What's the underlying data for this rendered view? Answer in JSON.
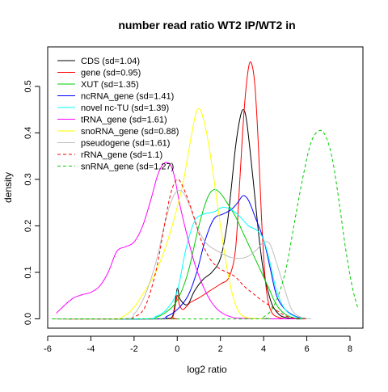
{
  "chart_data": {
    "type": "line",
    "title": "number read ratio WT2 IP/WT2 in",
    "xlabel": "log2 ratio",
    "ylabel": "density",
    "xlim": [
      -6.0,
      8.6
    ],
    "ylim": [
      -0.02,
      0.585
    ],
    "x_ticks": [
      -6,
      -4,
      -2,
      0,
      2,
      4,
      6,
      8
    ],
    "y_ticks": [
      0.0,
      0.1,
      0.2,
      0.3,
      0.4,
      0.5
    ],
    "legend_position": "top-left",
    "series": [
      {
        "name": "CDS (sd=1.04)",
        "color": "#000000",
        "dash": "solid",
        "points": [
          [
            -5.8,
            0
          ],
          [
            -1.0,
            0
          ],
          [
            -0.5,
            0.001
          ],
          [
            -0.2,
            0.008
          ],
          [
            0,
            0.065
          ],
          [
            0.1,
            0.045
          ],
          [
            0.25,
            0.035
          ],
          [
            0.4,
            0.03
          ],
          [
            0.55,
            0.035
          ],
          [
            0.8,
            0.06
          ],
          [
            1.2,
            0.085
          ],
          [
            1.6,
            0.1
          ],
          [
            2.0,
            0.13
          ],
          [
            2.3,
            0.2
          ],
          [
            2.5,
            0.28
          ],
          [
            2.7,
            0.37
          ],
          [
            2.9,
            0.43
          ],
          [
            3.05,
            0.45
          ],
          [
            3.2,
            0.43
          ],
          [
            3.4,
            0.35
          ],
          [
            3.6,
            0.26
          ],
          [
            3.8,
            0.17
          ],
          [
            4.0,
            0.1
          ],
          [
            4.2,
            0.06
          ],
          [
            4.4,
            0.03
          ],
          [
            4.7,
            0.01
          ],
          [
            5.0,
            0.003
          ],
          [
            5.5,
            0
          ],
          [
            6.0,
            0
          ]
        ]
      },
      {
        "name": "gene (sd=0.95)",
        "color": "#ff0000",
        "dash": "solid",
        "points": [
          [
            -5.8,
            0
          ],
          [
            -0.5,
            0
          ],
          [
            -0.2,
            0.005
          ],
          [
            0,
            0.05
          ],
          [
            0.1,
            0.03
          ],
          [
            0.25,
            0.02
          ],
          [
            0.4,
            0.025
          ],
          [
            0.6,
            0.035
          ],
          [
            1.0,
            0.045
          ],
          [
            1.5,
            0.06
          ],
          [
            2.0,
            0.075
          ],
          [
            2.4,
            0.09
          ],
          [
            2.7,
            0.15
          ],
          [
            2.9,
            0.3
          ],
          [
            3.1,
            0.45
          ],
          [
            3.3,
            0.54
          ],
          [
            3.45,
            0.548
          ],
          [
            3.6,
            0.5
          ],
          [
            3.75,
            0.38
          ],
          [
            3.9,
            0.22
          ],
          [
            4.05,
            0.1
          ],
          [
            4.2,
            0.04
          ],
          [
            4.4,
            0.012
          ],
          [
            4.7,
            0.003
          ],
          [
            5.0,
            0
          ]
        ]
      },
      {
        "name": "XUT (sd=1.35)",
        "color": "#00cc00",
        "dash": "solid",
        "points": [
          [
            -5.8,
            0
          ],
          [
            -1.5,
            0
          ],
          [
            -1.0,
            0.003
          ],
          [
            -0.5,
            0.015
          ],
          [
            0,
            0.04
          ],
          [
            0.5,
            0.1
          ],
          [
            1.0,
            0.2
          ],
          [
            1.4,
            0.26
          ],
          [
            1.7,
            0.278
          ],
          [
            2.0,
            0.27
          ],
          [
            2.3,
            0.25
          ],
          [
            2.7,
            0.22
          ],
          [
            3.0,
            0.19
          ],
          [
            3.4,
            0.15
          ],
          [
            3.8,
            0.11
          ],
          [
            4.2,
            0.07
          ],
          [
            4.6,
            0.03
          ],
          [
            5.0,
            0.01
          ],
          [
            5.5,
            0.001
          ],
          [
            6.0,
            0
          ]
        ]
      },
      {
        "name": "ncRNA_gene (sd=1.41)",
        "color": "#0000ff",
        "dash": "solid",
        "points": [
          [
            -5.8,
            0
          ],
          [
            -1.0,
            0
          ],
          [
            -0.5,
            0.005
          ],
          [
            0,
            0.02
          ],
          [
            0.5,
            0.05
          ],
          [
            0.9,
            0.1
          ],
          [
            1.3,
            0.17
          ],
          [
            1.7,
            0.215
          ],
          [
            2.1,
            0.225
          ],
          [
            2.5,
            0.235
          ],
          [
            2.8,
            0.25
          ],
          [
            3.05,
            0.265
          ],
          [
            3.3,
            0.255
          ],
          [
            3.6,
            0.22
          ],
          [
            4.0,
            0.17
          ],
          [
            4.3,
            0.11
          ],
          [
            4.6,
            0.05
          ],
          [
            5.0,
            0.02
          ],
          [
            5.5,
            0.005
          ],
          [
            6.0,
            0
          ]
        ]
      },
      {
        "name": "novel nc-TU (sd=1.39)",
        "color": "#00ffff",
        "dash": "solid",
        "points": [
          [
            -5.8,
            0
          ],
          [
            -1.5,
            0
          ],
          [
            -1.0,
            0.005
          ],
          [
            -0.5,
            0.02
          ],
          [
            0,
            0.06
          ],
          [
            0.4,
            0.15
          ],
          [
            0.8,
            0.21
          ],
          [
            1.2,
            0.225
          ],
          [
            1.7,
            0.23
          ],
          [
            2.1,
            0.24
          ],
          [
            2.5,
            0.235
          ],
          [
            2.9,
            0.22
          ],
          [
            3.3,
            0.2
          ],
          [
            3.7,
            0.19
          ],
          [
            4.0,
            0.17
          ],
          [
            4.3,
            0.12
          ],
          [
            4.6,
            0.06
          ],
          [
            5.0,
            0.02
          ],
          [
            5.5,
            0.004
          ],
          [
            6.0,
            0
          ]
        ]
      },
      {
        "name": "tRNA_gene (sd=1.61)",
        "color": "#ff00ff",
        "dash": "solid",
        "points": [
          [
            -5.6,
            0.012
          ],
          [
            -5.2,
            0.03
          ],
          [
            -4.8,
            0.045
          ],
          [
            -4.4,
            0.052
          ],
          [
            -4.0,
            0.057
          ],
          [
            -3.6,
            0.07
          ],
          [
            -3.2,
            0.1
          ],
          [
            -2.8,
            0.145
          ],
          [
            -2.4,
            0.155
          ],
          [
            -2.0,
            0.165
          ],
          [
            -1.6,
            0.2
          ],
          [
            -1.2,
            0.26
          ],
          [
            -0.9,
            0.31
          ],
          [
            -0.6,
            0.335
          ],
          [
            -0.3,
            0.33
          ],
          [
            -0.1,
            0.3
          ],
          [
            0.1,
            0.25
          ],
          [
            0.4,
            0.19
          ],
          [
            0.8,
            0.12
          ],
          [
            1.2,
            0.07
          ],
          [
            1.6,
            0.035
          ],
          [
            2.0,
            0.015
          ],
          [
            2.5,
            0.004
          ],
          [
            3.0,
            0.001
          ],
          [
            4.0,
            0
          ],
          [
            5.5,
            0
          ]
        ]
      },
      {
        "name": "snoRNA_gene (sd=0.88)",
        "color": "#ffff00",
        "dash": "solid",
        "points": [
          [
            -5.8,
            0
          ],
          [
            -3.0,
            0
          ],
          [
            -2.5,
            0.005
          ],
          [
            -2.0,
            0.025
          ],
          [
            -1.5,
            0.06
          ],
          [
            -1.0,
            0.1
          ],
          [
            -0.5,
            0.16
          ],
          [
            0,
            0.24
          ],
          [
            0.3,
            0.3
          ],
          [
            0.6,
            0.38
          ],
          [
            0.85,
            0.44
          ],
          [
            1.0,
            0.452
          ],
          [
            1.15,
            0.44
          ],
          [
            1.4,
            0.39
          ],
          [
            1.7,
            0.3
          ],
          [
            2.0,
            0.2
          ],
          [
            2.3,
            0.11
          ],
          [
            2.6,
            0.045
          ],
          [
            2.9,
            0.012
          ],
          [
            3.3,
            0.002
          ],
          [
            4.0,
            0
          ]
        ]
      },
      {
        "name": "pseudogene (sd=1.61)",
        "color": "#bebebe",
        "dash": "solid",
        "points": [
          [
            -5.8,
            0
          ],
          [
            -2.5,
            0
          ],
          [
            -2.0,
            0.01
          ],
          [
            -1.5,
            0.05
          ],
          [
            -1.0,
            0.12
          ],
          [
            -0.6,
            0.2
          ],
          [
            -0.3,
            0.25
          ],
          [
            0,
            0.275
          ],
          [
            0.3,
            0.27
          ],
          [
            0.6,
            0.24
          ],
          [
            0.9,
            0.2
          ],
          [
            1.3,
            0.165
          ],
          [
            1.7,
            0.15
          ],
          [
            2.1,
            0.14
          ],
          [
            2.5,
            0.132
          ],
          [
            2.9,
            0.13
          ],
          [
            3.3,
            0.135
          ],
          [
            3.7,
            0.15
          ],
          [
            4.0,
            0.165
          ],
          [
            4.3,
            0.16
          ],
          [
            4.6,
            0.12
          ],
          [
            5.0,
            0.06
          ],
          [
            5.3,
            0.02
          ],
          [
            5.7,
            0.004
          ],
          [
            6.2,
            0
          ]
        ]
      },
      {
        "name": "rRNA_gene (sd=1.1)",
        "color": "#ff0000",
        "dash": "dashed",
        "points": [
          [
            -5.8,
            0
          ],
          [
            -2.5,
            0
          ],
          [
            -2.0,
            0.004
          ],
          [
            -1.5,
            0.025
          ],
          [
            -1.0,
            0.1
          ],
          [
            -0.6,
            0.2
          ],
          [
            -0.3,
            0.27
          ],
          [
            0,
            0.3
          ],
          [
            0.3,
            0.28
          ],
          [
            0.7,
            0.23
          ],
          [
            1.1,
            0.17
          ],
          [
            1.5,
            0.13
          ],
          [
            1.9,
            0.11
          ],
          [
            2.3,
            0.1
          ],
          [
            2.7,
            0.09
          ],
          [
            3.1,
            0.07
          ],
          [
            3.5,
            0.055
          ],
          [
            3.9,
            0.04
          ],
          [
            4.3,
            0.028
          ],
          [
            4.7,
            0.015
          ],
          [
            5.1,
            0.005
          ],
          [
            5.6,
            0.001
          ],
          [
            6.0,
            0
          ]
        ]
      },
      {
        "name": "snRNA_gene (sd=1.27)",
        "color": "#00cc00",
        "dash": "dashed",
        "points": [
          [
            -5.8,
            0
          ],
          [
            3.5,
            0
          ],
          [
            4.0,
            0.004
          ],
          [
            4.5,
            0.03
          ],
          [
            5.0,
            0.1
          ],
          [
            5.4,
            0.2
          ],
          [
            5.8,
            0.3
          ],
          [
            6.2,
            0.38
          ],
          [
            6.6,
            0.405
          ],
          [
            6.9,
            0.39
          ],
          [
            7.2,
            0.34
          ],
          [
            7.5,
            0.25
          ],
          [
            7.8,
            0.15
          ],
          [
            8.1,
            0.07
          ],
          [
            8.35,
            0.025
          ]
        ]
      }
    ]
  }
}
